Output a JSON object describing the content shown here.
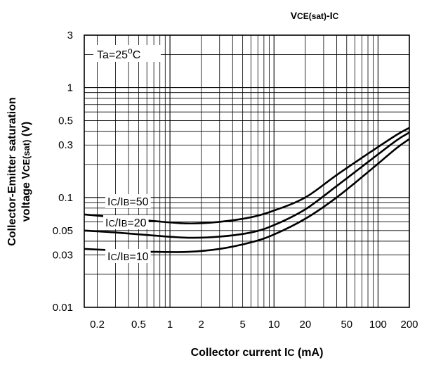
{
  "chart_data": {
    "type": "line",
    "title": {
      "main": "V",
      "sub": "CE(sat)",
      "tail": "-I",
      "tail_sub": "C"
    },
    "xlabel": {
      "text": "Collector current I",
      "sub": "C",
      "tail": " (mA)"
    },
    "ylabel": {
      "line1": "Collector-Emitter saturation",
      "line2_pre": "voltage V",
      "line2_sub": "CE(sat)",
      "line2_tail": " (V)"
    },
    "xscale": "log",
    "yscale": "log",
    "xlim": [
      0.15,
      200
    ],
    "ylim": [
      0.01,
      3
    ],
    "grid": true,
    "x_ticks": [
      {
        "value": 0.2,
        "label": "0.2"
      },
      {
        "value": 0.5,
        "label": "0.5"
      },
      {
        "value": 1,
        "label": "1"
      },
      {
        "value": 2,
        "label": "2"
      },
      {
        "value": 5,
        "label": "5"
      },
      {
        "value": 10,
        "label": "10"
      },
      {
        "value": 20,
        "label": "20"
      },
      {
        "value": 50,
        "label": "50"
      },
      {
        "value": 100,
        "label": "100"
      },
      {
        "value": 200,
        "label": "200"
      }
    ],
    "y_ticks": [
      {
        "value": 0.01,
        "label": "0.01"
      },
      {
        "value": 0.03,
        "label": "0.03"
      },
      {
        "value": 0.05,
        "label": "0.05"
      },
      {
        "value": 0.1,
        "label": "0.1"
      },
      {
        "value": 0.3,
        "label": "0.3"
      },
      {
        "value": 0.5,
        "label": "0.5"
      },
      {
        "value": 1,
        "label": "1"
      },
      {
        "value": 3,
        "label": "3"
      }
    ],
    "annotation": {
      "pre": "Ta=25",
      "sup": "o",
      "post": "C"
    },
    "series": [
      {
        "name": "IC/IB=50",
        "label_parts": {
          "a": "I",
          "a_sub": "C",
          "b": "/I",
          "b_sub": "B",
          "c": "=50"
        },
        "x": [
          0.15,
          0.3,
          0.7,
          1.5,
          3,
          6,
          10,
          20,
          40,
          80,
          150,
          200
        ],
        "y": [
          0.07,
          0.066,
          0.061,
          0.058,
          0.06,
          0.066,
          0.076,
          0.1,
          0.16,
          0.25,
          0.37,
          0.43
        ]
      },
      {
        "name": "IC/IB=20",
        "label_parts": {
          "a": "I",
          "a_sub": "C",
          "b": "/I",
          "b_sub": "B",
          "c": "=20"
        },
        "x": [
          0.15,
          0.3,
          0.7,
          1.5,
          3,
          6,
          10,
          20,
          40,
          80,
          150,
          200
        ],
        "y": [
          0.05,
          0.048,
          0.045,
          0.043,
          0.044,
          0.048,
          0.056,
          0.078,
          0.127,
          0.21,
          0.33,
          0.39
        ]
      },
      {
        "name": "IC/IB=10",
        "label_parts": {
          "a": "I",
          "a_sub": "C",
          "b": "/I",
          "b_sub": "B",
          "c": "=10"
        },
        "x": [
          0.15,
          0.3,
          0.7,
          1.5,
          3,
          6,
          10,
          20,
          40,
          80,
          150,
          200
        ],
        "y": [
          0.034,
          0.033,
          0.032,
          0.032,
          0.034,
          0.039,
          0.046,
          0.064,
          0.1,
          0.17,
          0.28,
          0.34
        ]
      }
    ]
  }
}
